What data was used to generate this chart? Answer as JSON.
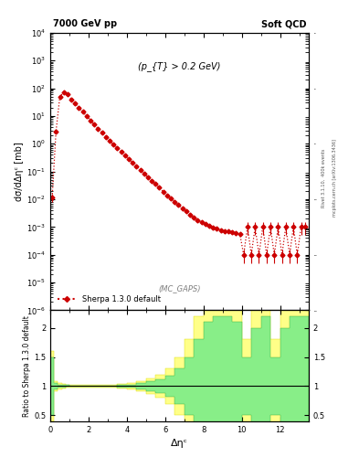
{
  "title_left": "7000 GeV pp",
  "title_right": "Soft QCD",
  "annotation": "(p_{T} > 0.2 GeV)",
  "mc_label": "(MC_GAPS)",
  "ylabel_main": "dσ/dΔηᶜ [mb]",
  "ylabel_ratio": "Ratio to Sherpa 1.3.0 default",
  "xlabel": "Δηᶜ",
  "legend_label": "Sherpa 1.3.0 default",
  "xlim": [
    0,
    13.5
  ],
  "ylim_main_log": [
    -6,
    4
  ],
  "ylim_ratio": [
    0.4,
    2.3
  ],
  "data_x": [
    0.1,
    0.3,
    0.5,
    0.7,
    0.9,
    1.1,
    1.3,
    1.5,
    1.7,
    1.9,
    2.1,
    2.3,
    2.5,
    2.7,
    2.9,
    3.1,
    3.3,
    3.5,
    3.7,
    3.9,
    4.1,
    4.3,
    4.5,
    4.7,
    4.9,
    5.1,
    5.3,
    5.5,
    5.7,
    5.9,
    6.1,
    6.3,
    6.5,
    6.7,
    6.9,
    7.1,
    7.3,
    7.5,
    7.7,
    7.9,
    8.1,
    8.3,
    8.5,
    8.7,
    8.9,
    9.1,
    9.3,
    9.5,
    9.7,
    9.9,
    10.1,
    10.3,
    10.5,
    10.7,
    10.9,
    11.1,
    11.3,
    11.5,
    11.7,
    11.9,
    12.1,
    12.3,
    12.5,
    12.7,
    12.9,
    13.1,
    13.3
  ],
  "data_y": [
    0.012,
    2.8,
    50,
    70,
    60,
    40,
    28,
    20,
    14,
    10,
    7,
    5,
    3.5,
    2.5,
    1.8,
    1.3,
    0.95,
    0.7,
    0.52,
    0.38,
    0.28,
    0.21,
    0.155,
    0.115,
    0.085,
    0.063,
    0.047,
    0.035,
    0.026,
    0.019,
    0.014,
    0.011,
    0.0082,
    0.0062,
    0.0048,
    0.0037,
    0.0028,
    0.0022,
    0.0018,
    0.0015,
    0.00125,
    0.0011,
    0.00095,
    0.00085,
    0.00078,
    0.00072,
    0.00068,
    0.00064,
    0.00061,
    0.00058,
    0.0001,
    0.001,
    0.0001,
    0.001,
    0.0001,
    0.001,
    0.0001,
    0.001,
    0.0001,
    0.001,
    0.0001,
    0.001,
    0.0001,
    0.001,
    0.0001,
    0.001,
    0.001
  ],
  "data_yerr": [
    0.004,
    0.3,
    2,
    2,
    2,
    1.5,
    1,
    0.7,
    0.5,
    0.35,
    0.25,
    0.18,
    0.13,
    0.09,
    0.07,
    0.05,
    0.04,
    0.028,
    0.022,
    0.016,
    0.012,
    0.009,
    0.007,
    0.005,
    0.004,
    0.003,
    0.002,
    0.0017,
    0.0013,
    0.001,
    0.0008,
    0.0006,
    0.0005,
    0.0004,
    0.0003,
    0.00025,
    0.0002,
    0.00017,
    0.00015,
    0.00013,
    0.00011,
    0.0001,
    9e-05,
    8e-05,
    7.5e-05,
    7e-05,
    6.5e-05,
    6e-05,
    5.8e-05,
    5.5e-05,
    5e-05,
    0.0005,
    5e-05,
    0.0005,
    5e-05,
    0.0005,
    5e-05,
    0.0005,
    5e-05,
    0.0005,
    5e-05,
    0.0005,
    5e-05,
    0.0005,
    5e-05,
    0.0005,
    0.0005
  ],
  "line_color": "#cc0000",
  "marker_color": "#cc0000",
  "background_color": "#ffffff",
  "ratio_x": [
    0.0,
    0.2,
    0.4,
    0.6,
    0.8,
    1.0,
    1.5,
    2.0,
    2.5,
    3.0,
    3.5,
    4.0,
    4.5,
    5.0,
    5.5,
    6.0,
    6.5,
    7.0,
    7.5,
    8.0,
    8.5,
    9.0,
    9.5,
    10.0,
    10.5,
    11.0,
    11.5,
    12.0,
    12.5,
    13.0,
    13.5
  ],
  "ratio_green_upper": [
    1.5,
    1.05,
    1.03,
    1.02,
    1.015,
    1.01,
    1.01,
    1.01,
    1.01,
    1.01,
    1.02,
    1.03,
    1.05,
    1.08,
    1.12,
    1.18,
    1.3,
    1.5,
    1.8,
    2.1,
    2.2,
    2.2,
    2.1,
    1.5,
    2.0,
    2.2,
    1.5,
    2.0,
    2.2,
    2.2,
    2.2
  ],
  "ratio_green_lower": [
    0.5,
    0.95,
    0.97,
    0.98,
    0.985,
    0.99,
    0.99,
    0.99,
    0.99,
    0.99,
    0.98,
    0.97,
    0.95,
    0.92,
    0.88,
    0.82,
    0.7,
    0.5,
    0.3,
    0.1,
    0.1,
    0.1,
    0.1,
    0.5,
    0.1,
    0.1,
    0.5,
    0.1,
    0.1,
    0.1,
    0.1
  ],
  "ratio_yellow_upper": [
    1.6,
    1.08,
    1.05,
    1.04,
    1.03,
    1.02,
    1.02,
    1.02,
    1.02,
    1.02,
    1.04,
    1.06,
    1.09,
    1.14,
    1.2,
    1.3,
    1.5,
    1.8,
    2.2,
    2.3,
    2.3,
    2.3,
    2.3,
    1.8,
    2.3,
    2.3,
    1.8,
    2.3,
    2.3,
    2.3,
    2.3
  ],
  "ratio_yellow_lower": [
    0.4,
    0.92,
    0.95,
    0.96,
    0.97,
    0.98,
    0.98,
    0.98,
    0.98,
    0.98,
    0.96,
    0.94,
    0.91,
    0.86,
    0.8,
    0.7,
    0.5,
    0.3,
    0.1,
    0.05,
    0.05,
    0.05,
    0.05,
    0.3,
    0.05,
    0.05,
    0.3,
    0.05,
    0.05,
    0.05,
    0.05
  ]
}
